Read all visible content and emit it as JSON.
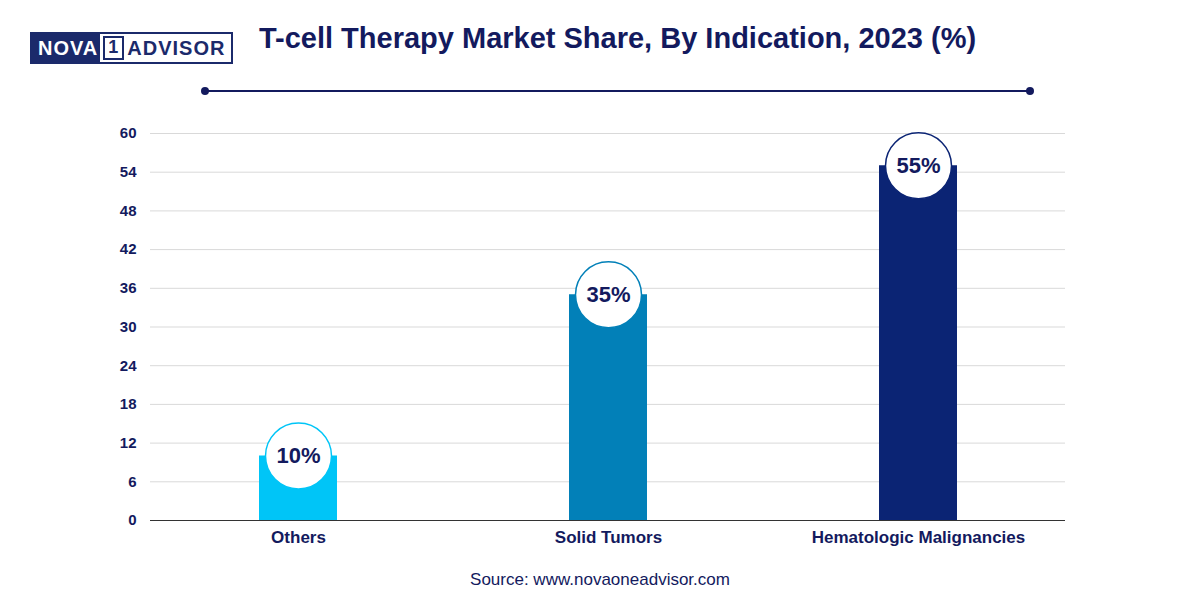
{
  "chart_data": {
    "type": "bar",
    "title": "T-cell Therapy Market Share, By Indication, 2023 (%)",
    "logo": "NOVA1ADVISOR",
    "source": "Source: www.novaoneadvisor.com",
    "categories": [
      "Others",
      "Solid Tumors",
      "Hematologic Malignancies"
    ],
    "values": [
      10,
      35,
      55
    ],
    "value_labels": [
      "10%",
      "35%",
      "55%"
    ],
    "colors": [
      "#00c5f7",
      "#0280b8",
      "#0b2474"
    ],
    "ylim": [
      0,
      60
    ],
    "yticks": [
      0,
      6,
      12,
      18,
      24,
      30,
      36,
      42,
      48,
      54,
      60
    ],
    "grid": true,
    "data_labels": true
  }
}
